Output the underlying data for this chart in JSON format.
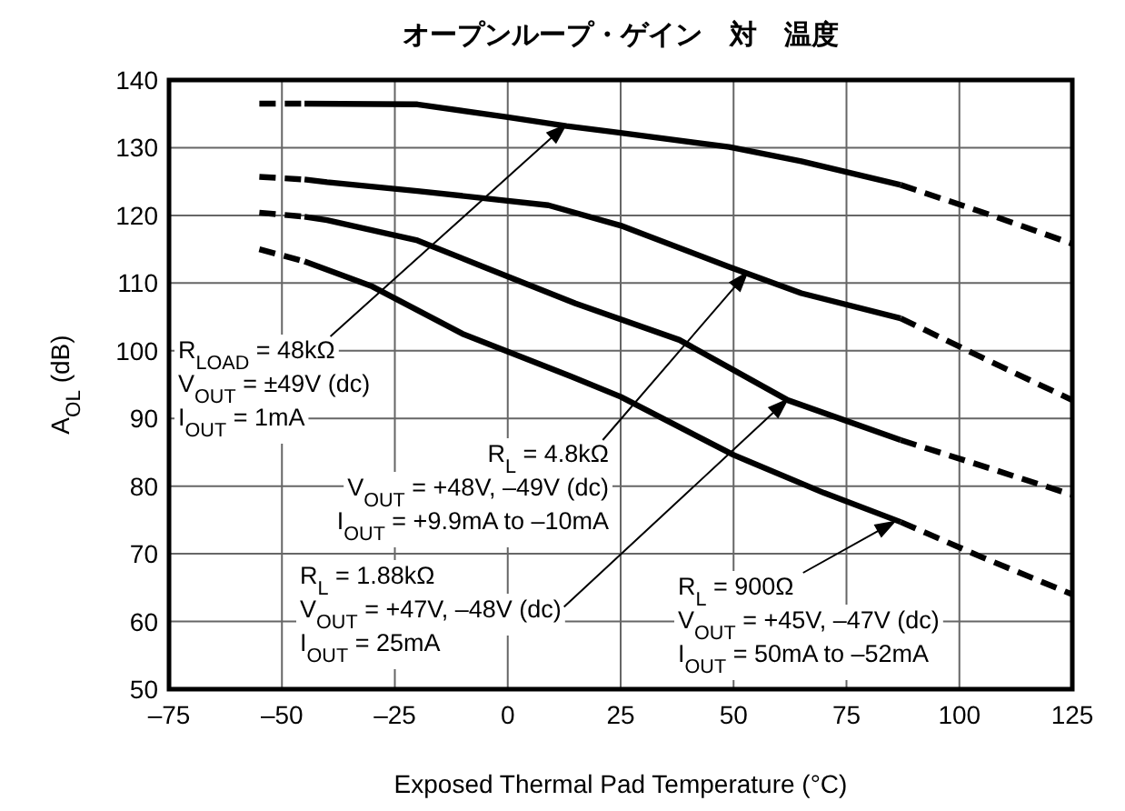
{
  "chart_data": {
    "type": "line",
    "title": "オープンループ・ゲイン　対　温度",
    "xlabel": "Exposed Thermal Pad Temperature (°C)",
    "ylabel": "A$_{OL}$ (dB)",
    "xlim": [
      -75,
      125
    ],
    "xticks": [
      {
        "value": -75,
        "label": "–75"
      },
      {
        "value": -50,
        "label": "–50"
      },
      {
        "value": -25,
        "label": "–25"
      },
      0,
      25,
      50,
      75,
      100,
      125
    ],
    "ylim": [
      50,
      140
    ],
    "yticks": [
      50,
      60,
      70,
      80,
      90,
      100,
      110,
      120,
      130,
      140
    ],
    "grid": true,
    "marker": "none",
    "series": [
      {
        "color": "#000000",
        "line_style": "solid",
        "x": [
          -45,
          -20,
          0,
          13,
          25,
          49,
          65,
          87
        ],
        "values": [
          136.5,
          136.4,
          134.5,
          133.2,
          132.2,
          130.1,
          128,
          124.5
        ]
      },
      {
        "color": "#000000",
        "line_style": "dashed",
        "x": [
          -55,
          -45
        ],
        "values": [
          136.5,
          136.5
        ]
      },
      {
        "color": "#000000",
        "line_style": "dashed",
        "x": [
          87,
          105,
          125
        ],
        "values": [
          124.5,
          120.5,
          115.8
        ]
      },
      {
        "color": "#000000",
        "line_style": "solid",
        "x": [
          -45,
          -40,
          -20,
          9,
          25,
          49,
          65,
          87
        ],
        "values": [
          125.3,
          124.9,
          123.6,
          121.5,
          118.5,
          112.4,
          108.5,
          104.8
        ]
      },
      {
        "color": "#000000",
        "line_style": "dashed",
        "x": [
          -55,
          -45
        ],
        "values": [
          125.7,
          125.3
        ]
      },
      {
        "color": "#000000",
        "line_style": "dashed",
        "x": [
          87,
          105,
          125
        ],
        "values": [
          104.8,
          99,
          92.7
        ]
      },
      {
        "color": "#000000",
        "line_style": "solid",
        "x": [
          -45,
          -40,
          -20,
          -5,
          15,
          38,
          62,
          87
        ],
        "values": [
          119.8,
          119.3,
          116.3,
          112.3,
          107,
          101.6,
          92.7,
          86.8
        ]
      },
      {
        "color": "#000000",
        "line_style": "dashed",
        "x": [
          -55,
          -45
        ],
        "values": [
          120.4,
          119.8
        ]
      },
      {
        "color": "#000000",
        "line_style": "dashed",
        "x": [
          87,
          105,
          125
        ],
        "values": [
          86.8,
          83,
          78.7
        ]
      },
      {
        "color": "#000000",
        "line_style": "solid",
        "x": [
          -45,
          -30,
          -10,
          14,
          25,
          50,
          70,
          87
        ],
        "values": [
          113.2,
          109.5,
          102.5,
          96.2,
          93.2,
          84.6,
          79,
          74.7
        ]
      },
      {
        "color": "#000000",
        "line_style": "dashed",
        "x": [
          -55,
          -45
        ],
        "values": [
          115,
          113.2
        ]
      },
      {
        "color": "#000000",
        "line_style": "dashed",
        "x": [
          87,
          105,
          125
        ],
        "values": [
          74.7,
          69.5,
          64
        ]
      }
    ],
    "annotations": [
      "R$_{LOAD}$ = 48kΩ",
      "V$_{OUT}$ = ±49V (dc)",
      "I$_{OUT}$ = 1mA",
      "R$_{L}$ = 4.8kΩ",
      "V$_{OUT}$ = +48V, –49V (dc)",
      "I$_{OUT}$ = +9.9mA to –10mA",
      "R$_{L}$ = 1.88kΩ",
      "V$_{OUT}$ = +47V, –48V (dc)",
      "I$_{OUT}$ = 25mA",
      "R$_{L}$ = 900Ω",
      "V$_{OUT}$ = +45V, –47V (dc)",
      "I$_{OUT}$ = 50mA to –52mA"
    ]
  }
}
